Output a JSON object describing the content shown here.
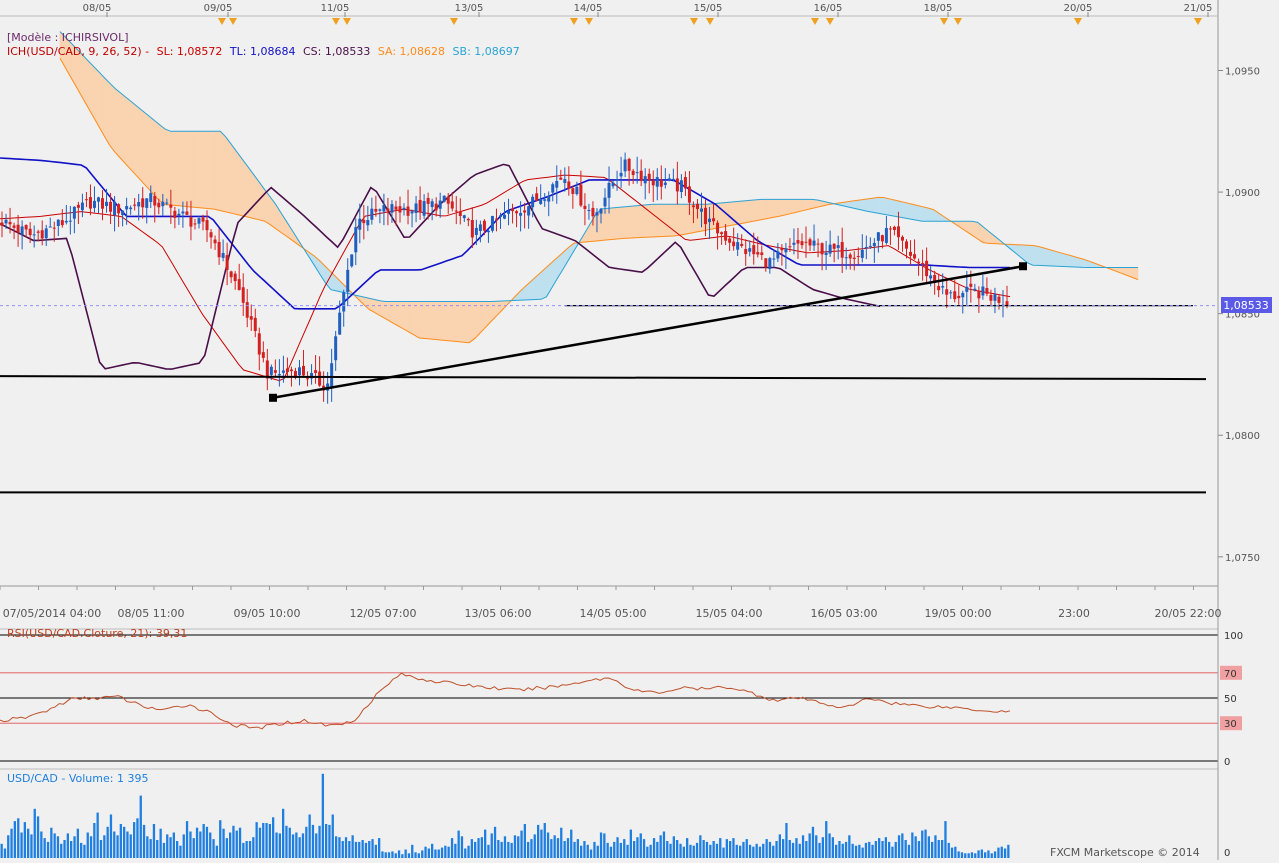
{
  "model_label": "[Modèle : ICHIRSIVOL]",
  "ichimoku_legend": {
    "name": "ICH(USD/CAD, 9, 26, 52) -",
    "sl": "SL: 1,08572",
    "tl": "TL: 1,08684",
    "cs": "CS: 1,08533",
    "sa": "SA: 1,08628",
    "sb": "SB: 1,08697"
  },
  "rsi_legend": "RSI(USD/CAD.Cloture, 21): 39,31",
  "volume_legend": "USD/CAD - Volume: 1 395",
  "footer": "FXCM Marketscope © 2014",
  "price_badge": "1,08533",
  "colors": {
    "background": "#f0f0f0",
    "bull_candle": "#1f5fbf",
    "bear_candle": "#d42020",
    "tenkan": "#cc0000",
    "kijun": "#1010c8",
    "chikou": "#4a0f4a",
    "senkou_a": "#ff8c1a",
    "senkou_b": "#2aa3d6",
    "cloud_bull": "#fad3b0",
    "cloud_bear": "#bfe0ee",
    "rsi_line": "#c0502a",
    "volume_bar": "#1e7fe0"
  },
  "chart_data": [
    {
      "type": "candlestick",
      "title": "USD/CAD",
      "top_date_labels": [
        "08/05",
        "09/05",
        "11/05",
        "13/05",
        "14/05",
        "15/05",
        "16/05",
        "18/05",
        "20/05",
        "21/05"
      ],
      "bottom_time_labels": [
        "07/05/2014 04:00",
        "08/05 11:00",
        "09/05 10:00",
        "12/05 07:00",
        "13/05 06:00",
        "14/05 05:00",
        "15/05 04:00",
        "16/05 03:00",
        "19/05 00:00",
        "23:00",
        "20/05 22:00"
      ],
      "y_tick_labels": [
        "1,0950",
        "1,0900",
        "1,0850",
        "1,0800",
        "1,0750"
      ],
      "y_ticks": [
        1.095,
        1.09,
        1.085,
        1.08,
        1.075
      ],
      "ylim": [
        1.0738,
        1.0972
      ],
      "last_price": 1.08533,
      "support_lines": [
        1.08243,
        1.07765
      ],
      "dotted_level": 1.08533,
      "trendline": [
        [
          1.08154
        ],
        [
          1.08695
        ]
      ],
      "close_keypoints": [
        1.0888,
        1.0882,
        1.0887,
        1.0896,
        1.0893,
        1.0897,
        1.0891,
        1.0884,
        1.086,
        1.0825,
        1.0827,
        1.082,
        1.0888,
        1.0893,
        1.0893,
        1.0896,
        1.0883,
        1.089,
        1.0896,
        1.0907,
        1.089,
        1.0911,
        1.0905,
        1.0902,
        1.0886,
        1.0877,
        1.0871,
        1.0879,
        1.0876,
        1.0875,
        1.0884,
        1.0871,
        1.0857,
        1.0859,
        1.0855
      ],
      "tenkan_keypoints": [
        1.0889,
        1.089,
        1.0892,
        1.089,
        1.0878,
        1.085,
        1.0827,
        1.0822,
        1.086,
        1.089,
        1.0893,
        1.089,
        1.0895,
        1.0905,
        1.0907,
        1.0906,
        1.0893,
        1.088,
        1.0882,
        1.0878,
        1.0875,
        1.0876,
        1.0878,
        1.0868,
        1.086,
        1.0857
      ],
      "kijun_keypoints": [
        1.0914,
        1.0913,
        1.0911,
        1.089,
        1.089,
        1.089,
        1.0868,
        1.0852,
        1.0852,
        1.0868,
        1.0868,
        1.0874,
        1.0892,
        1.0898,
        1.0905,
        1.0905,
        1.0905,
        1.0895,
        1.088,
        1.087,
        1.087,
        1.087,
        1.087,
        1.0869,
        1.0869
      ],
      "chikou_keypoints": [
        1.0887,
        1.088,
        1.0881,
        1.0827,
        1.083,
        1.0827,
        1.083,
        1.0887,
        1.0902,
        1.089,
        1.0877,
        1.0903,
        1.088,
        1.0895,
        1.0907,
        1.0912,
        1.0885,
        1.088,
        1.0869,
        1.0867,
        1.088,
        1.0856,
        1.0869,
        1.0869,
        1.086,
        1.0856,
        1.0853
      ],
      "senkou_a_keypoints": [
        1.0955,
        1.0918,
        1.0895,
        1.0893,
        1.0888,
        1.0873,
        1.0852,
        1.084,
        1.0838,
        1.086,
        1.0879,
        1.0881,
        1.0882,
        1.0886,
        1.089,
        1.0895,
        1.0898,
        1.0893,
        1.0879,
        1.0878,
        1.0872,
        1.0864
      ],
      "senkou_b_keypoints": [
        1.0966,
        1.0943,
        1.0925,
        1.0925,
        1.0895,
        1.086,
        1.0855,
        1.0855,
        1.0855,
        1.0856,
        1.0893,
        1.0895,
        1.0895,
        1.0897,
        1.0897,
        1.0892,
        1.0888,
        1.0888,
        1.087,
        1.0869,
        1.0869
      ]
    },
    {
      "type": "line",
      "title": "RSI(USD/CAD.Cloture, 21)",
      "y_tick_labels": [
        "100",
        "70",
        "50",
        "30",
        "0"
      ],
      "levels": [
        100,
        70,
        50,
        30,
        0
      ],
      "ylim": [
        0,
        100
      ],
      "last_value": 39.31,
      "keypoints": [
        32,
        34,
        40,
        49,
        50,
        51,
        44,
        40,
        45,
        38,
        28,
        26,
        30,
        32,
        28,
        31,
        52,
        69,
        65,
        62,
        60,
        58,
        56,
        58,
        60,
        64,
        66,
        56,
        54,
        58,
        57,
        59,
        54,
        48,
        50,
        46,
        42,
        50,
        46,
        44,
        43,
        42,
        40,
        39.31
      ]
    },
    {
      "type": "bar",
      "title": "USD/CAD - Volume",
      "y_tick_labels": [
        "0"
      ],
      "last_value": 1395,
      "values": [
        1500,
        1000,
        2400,
        3100,
        3900,
        4200,
        2700,
        3800,
        3100,
        2500,
        5200,
        4400,
        2800,
        2100,
        1700,
        3200,
        2600,
        2300,
        1500,
        1900,
        2600,
        1800,
        2300,
        3100,
        1600,
        1400,
        2700,
        2300,
        3700,
        4800,
        1900,
        2400,
        3300,
        4600,
        2800,
        2400,
        3600,
        3300,
        2800,
        2500,
        3800,
        4200,
        6600,
        3500,
        2300,
        2000,
        3600,
        1900,
        3100,
        1600,
        2500,
        2200,
        2700,
        1800,
        1300,
        2500,
        3900,
        2800,
        2100,
        3200,
        2800,
        3600,
        3300,
        2700,
        2000,
        1300,
        4000,
        3100,
        2100,
        2700,
        3400,
        2900,
        3200,
        1600,
        1800,
        1800,
        2200,
        3800,
        3200,
        3700,
        3700,
        3600,
        4300,
        2700,
        2600,
        5200,
        3400,
        3200,
        2500,
        2700,
        2200,
        2600,
        3300,
        4600,
        3500,
        2600,
        3400,
        8900,
        3600,
        3500,
        4600,
        2300,
        2200,
        1800,
        2200,
        1800,
        2400,
        1700,
        1700,
        1900,
        1600,
        1800,
        2000,
        1400,
        2100,
        700,
        600,
        600,
        700,
        500,
        800,
        400,
        900,
        500,
        1400,
        600,
        500,
        800,
        1200,
        1000,
        1500,
        900,
        900,
        1100,
        1300,
        1200,
        2100,
        1500,
        2900,
        2300,
        1000,
        1300,
        2000,
        1700,
        2100,
        2200,
        3000,
        1400,
        2600,
        3300,
        1900,
        1700,
        2300,
        1700,
        1600,
        2400,
        2300,
        2900,
        3600,
        1700,
        2000,
        2500,
        3500,
        3000,
        3700,
        2700,
        2000,
        2400,
        2100,
        3200,
        1800,
        2100,
        3000,
        1700,
        2000,
        1300,
        1800,
        1400,
        900,
        1700,
        1300,
        2700,
        2600,
        1600,
        1200,
        1700,
        2200,
        1600,
        2000,
        1400,
        3000,
        1800,
        2200,
        2600,
        2000,
        1200,
        1400,
        2100,
        1700,
        2400,
        2800,
        1800,
        1500,
        2300,
        1900,
        1500,
        1200,
        2100,
        1400,
        1300,
        1600,
        2400,
        1900,
        1700,
        1400,
        1800,
        1500,
        2100,
        1100,
        2000,
        1800,
        2100,
        1400,
        1300,
        1700,
        2000,
        1400,
        1200,
        1500,
        1200,
        1500,
        2000,
        1700,
        1300,
        1800,
        2500,
        2000,
        3700,
        1900,
        1600,
        2100,
        1500,
        2400,
        1800,
        2600,
        3300,
        2400,
        1600,
        2200,
        3900,
        2600,
        2200,
        1400,
        1800,
        1500,
        1700,
        2400,
        1500,
        1300,
        1400,
        1100,
        1600,
        1700,
        1400,
        1800,
        2100,
        1800,
        2200,
        1700,
        1200,
        1700,
        2400,
        2600,
        1900,
        1400,
        2700,
        2300,
        1800,
        2900,
        3000,
        2300,
        1700,
        2400,
        1900,
        1900,
        3900,
        1600,
        1100,
        1200,
        700,
        600,
        500,
        500,
        600,
        500,
        800,
        900,
        600,
        800,
        500,
        700,
        1100,
        1200,
        1000,
        1395
      ]
    }
  ]
}
